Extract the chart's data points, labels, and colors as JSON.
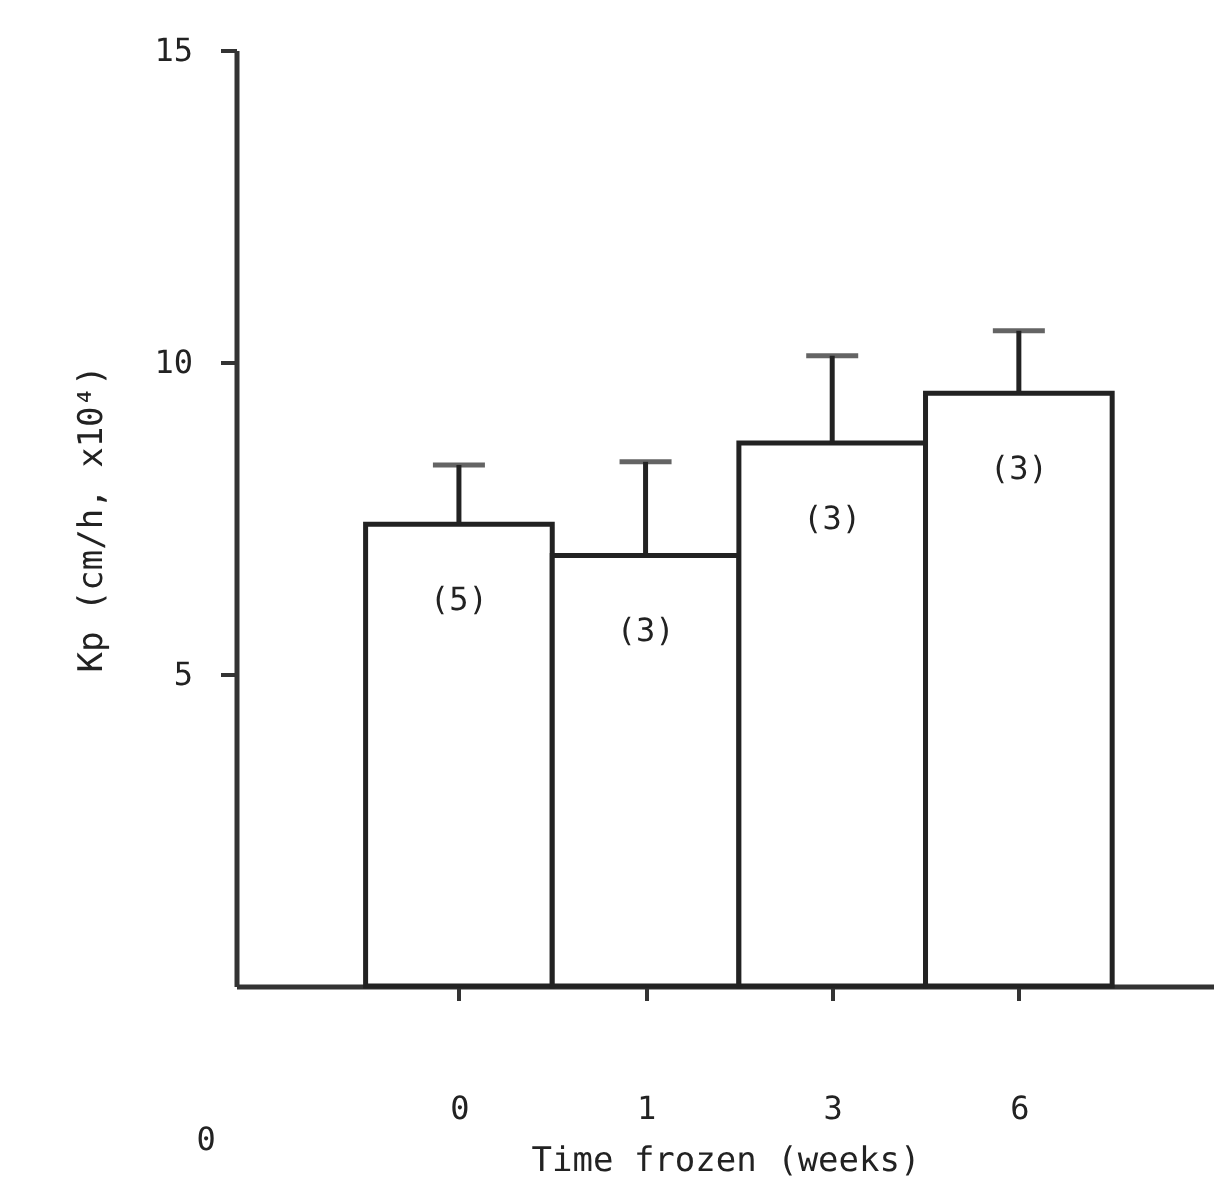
{
  "chart_data": {
    "type": "bar",
    "xlabel": "Time frozen (weeks)",
    "ylabel": "Kp (cm/h, x10⁴)",
    "categories": [
      "0",
      "1",
      "3",
      "6"
    ],
    "values": [
      7.4,
      6.9,
      8.7,
      9.5
    ],
    "color": "#ffffff",
    "errors": [
      [
        7.4,
        8.35
      ],
      [
        6.9,
        8.4
      ],
      [
        8.7,
        10.1
      ],
      [
        9.5,
        10.5
      ]
    ],
    "ylim": [
      0,
      15
    ],
    "yticks": [
      5,
      10,
      15
    ],
    "grid": false,
    "annotations": [
      "(5)",
      "(3)",
      "(3)",
      "(3)",
      "0"
    ]
  }
}
